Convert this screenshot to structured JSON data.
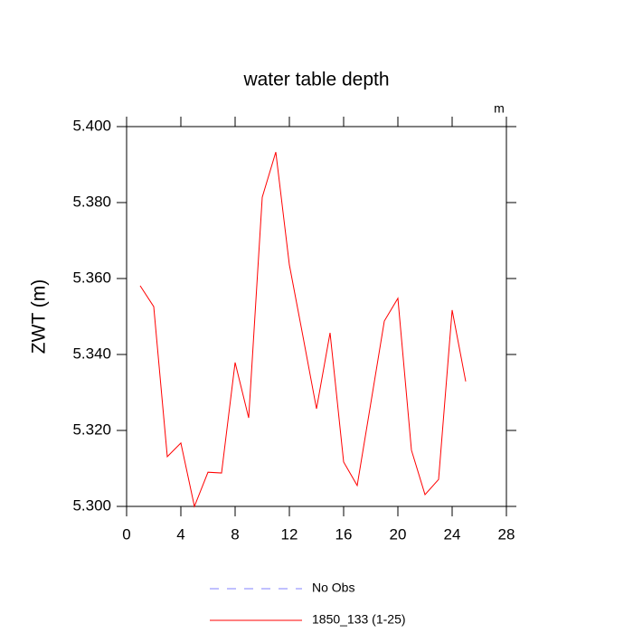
{
  "chart_data": {
    "type": "line",
    "title": "water table depth",
    "units_label": "m",
    "ylabel": "ZWT  (m)",
    "x": [
      1,
      2,
      3,
      4,
      5,
      6,
      7,
      8,
      9,
      10,
      11,
      12,
      13,
      14,
      15,
      16,
      17,
      18,
      19,
      20,
      21,
      22,
      23,
      24,
      25
    ],
    "series": [
      {
        "name": "No Obs",
        "color": "#8080ff",
        "dashed": true,
        "values": [
          null,
          null,
          null,
          null,
          null,
          null,
          null,
          null,
          null,
          null,
          null,
          null,
          null,
          null,
          null,
          null,
          null,
          null,
          null,
          null,
          null,
          null,
          null,
          null,
          null
        ]
      },
      {
        "name": "1850_133 (1-25)",
        "color": "#ff0000",
        "dashed": false,
        "values": [
          5.3581,
          5.3526,
          5.3131,
          5.3167,
          5.3,
          5.309,
          5.3088,
          5.3379,
          5.3233,
          5.3814,
          5.3933,
          5.3636,
          5.3448,
          5.3257,
          5.3457,
          5.3117,
          5.3055,
          5.3271,
          5.3488,
          5.3548,
          5.3148,
          5.3031,
          5.3071,
          5.3517,
          5.3329
        ]
      }
    ],
    "xlim": [
      0,
      28
    ],
    "xticks": [
      0,
      4,
      8,
      12,
      16,
      20,
      24,
      28
    ],
    "ylim": [
      5.3,
      5.4
    ],
    "yticks": [
      {
        "value": 5.3,
        "label": "5.300"
      },
      {
        "value": 5.32,
        "label": "5.320"
      },
      {
        "value": 5.34,
        "label": "5.340"
      },
      {
        "value": 5.36,
        "label": "5.360"
      },
      {
        "value": 5.38,
        "label": "5.380"
      },
      {
        "value": 5.4,
        "label": "5.400"
      }
    ]
  }
}
